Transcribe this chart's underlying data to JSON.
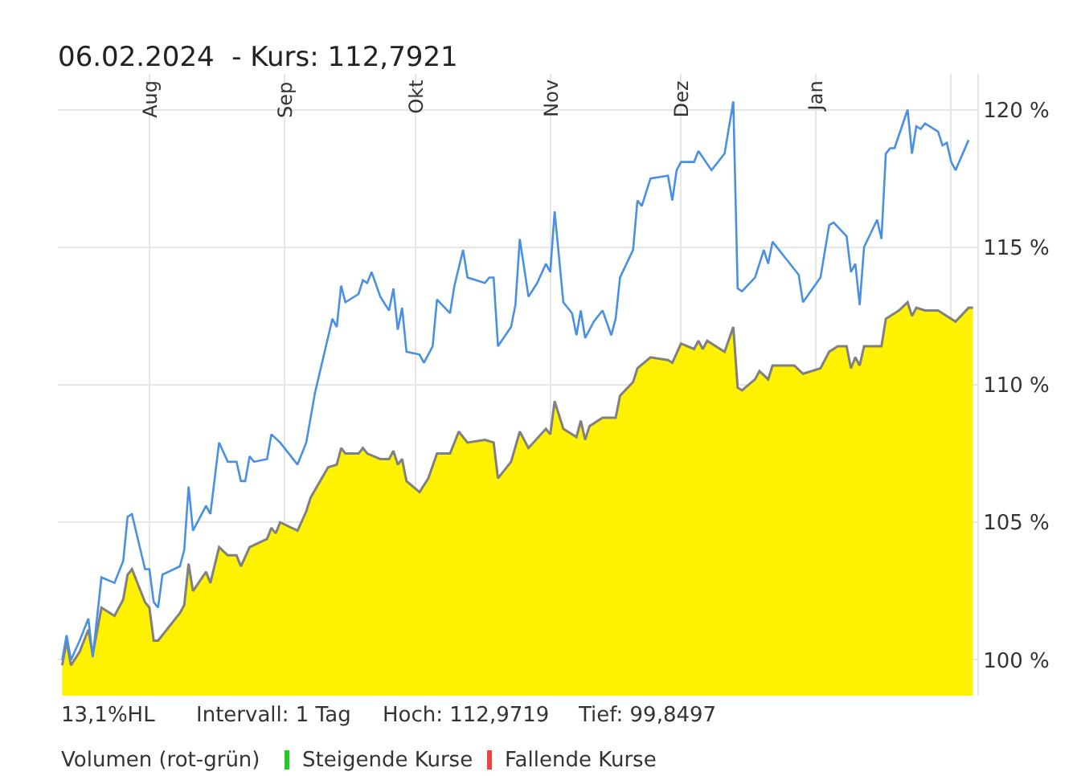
{
  "chart_data": {
    "type": "area",
    "title": "06.02.2024  - Kurs: 112,7921",
    "series": [
      {
        "type": "area",
        "color": "#fff200",
        "x": [
          "2023-07-12",
          "2023-07-13",
          "2023-07-14",
          "2023-07-16",
          "2023-07-18",
          "2023-07-19",
          "2023-07-21",
          "2023-07-24",
          "2023-07-26",
          "2023-07-27",
          "2023-07-28",
          "2023-07-31",
          "2023-08-01",
          "2023-08-02",
          "2023-08-03",
          "2023-08-08",
          "2023-08-09",
          "2023-08-10",
          "2023-08-11",
          "2023-08-14",
          "2023-08-15",
          "2023-08-17",
          "2023-08-19",
          "2023-08-21",
          "2023-08-22",
          "2023-08-24",
          "2023-08-28",
          "2023-08-29",
          "2023-08-30",
          "2023-08-31",
          "2023-09-04",
          "2023-09-06",
          "2023-09-07",
          "2023-09-11",
          "2023-09-13",
          "2023-09-14",
          "2023-09-15",
          "2023-09-18",
          "2023-09-19",
          "2023-09-20",
          "2023-09-23",
          "2023-09-25",
          "2023-09-26",
          "2023-09-27",
          "2023-09-28",
          "2023-09-29",
          "2023-10-02",
          "2023-10-04",
          "2023-10-06",
          "2023-10-09",
          "2023-10-11",
          "2023-10-13",
          "2023-10-17",
          "2023-10-19",
          "2023-10-20",
          "2023-10-23",
          "2023-10-25",
          "2023-10-27",
          "2023-10-31",
          "2023-11-01",
          "2023-11-02",
          "2023-11-04",
          "2023-11-07",
          "2023-11-08",
          "2023-11-09",
          "2023-11-10",
          "2023-11-13",
          "2023-11-16",
          "2023-11-17",
          "2023-11-20",
          "2023-11-21",
          "2023-11-24",
          "2023-11-28",
          "2023-11-29",
          "2023-12-01",
          "2023-12-04",
          "2023-12-05",
          "2023-12-06",
          "2023-12-07",
          "2023-12-11",
          "2023-12-13",
          "2023-12-14",
          "2023-12-15",
          "2023-12-18",
          "2023-12-19",
          "2023-12-21",
          "2023-12-22",
          "2023-12-27",
          "2023-12-29",
          "2024-01-02",
          "2024-01-04",
          "2024-01-06",
          "2024-01-08",
          "2024-01-09",
          "2024-01-10",
          "2024-01-11",
          "2024-01-12",
          "2024-01-16",
          "2024-01-17",
          "2024-01-20",
          "2024-01-22",
          "2024-01-23",
          "2024-01-24",
          "2024-01-26",
          "2024-01-29",
          "2024-01-30",
          "2024-02-02",
          "2024-02-05",
          "2024-02-06"
        ],
        "values": [
          99.8,
          100.7,
          99.8,
          100.3,
          101.1,
          100.2,
          101.9,
          101.6,
          102.2,
          103.1,
          103.3,
          102.1,
          101.9,
          100.7,
          100.7,
          101.7,
          102.0,
          103.5,
          102.5,
          103.2,
          102.8,
          104.1,
          103.8,
          103.8,
          103.4,
          104.1,
          104.4,
          104.8,
          104.6,
          105.0,
          104.7,
          105.4,
          105.9,
          107.0,
          107.1,
          107.7,
          107.5,
          107.5,
          107.7,
          107.5,
          107.3,
          107.3,
          107.6,
          107.1,
          107.3,
          106.5,
          106.1,
          106.6,
          107.5,
          107.5,
          108.3,
          107.9,
          108.0,
          107.9,
          106.6,
          107.2,
          108.3,
          107.7,
          108.4,
          108.2,
          109.4,
          108.4,
          108.1,
          108.7,
          108.0,
          108.5,
          108.8,
          108.8,
          109.6,
          110.1,
          110.6,
          111.0,
          110.9,
          110.8,
          111.5,
          111.3,
          111.6,
          111.3,
          111.6,
          111.2,
          112.1,
          109.9,
          109.8,
          110.2,
          110.5,
          110.2,
          110.7,
          110.7,
          110.4,
          110.6,
          111.2,
          111.4,
          111.4,
          110.6,
          111.0,
          110.7,
          111.4,
          111.4,
          112.4,
          112.7,
          113.0,
          112.5,
          112.8,
          112.7,
          112.7,
          112.6,
          112.3,
          112.8,
          112.8
        ]
      },
      {
        "type": "line",
        "color": "#4a90e2",
        "x": [
          "2023-07-12",
          "2023-07-13",
          "2023-07-14",
          "2023-07-16",
          "2023-07-18",
          "2023-07-19",
          "2023-07-21",
          "2023-07-24",
          "2023-07-26",
          "2023-07-27",
          "2023-07-28",
          "2023-07-31",
          "2023-08-01",
          "2023-08-02",
          "2023-08-03",
          "2023-08-04",
          "2023-08-08",
          "2023-08-09",
          "2023-08-10",
          "2023-08-11",
          "2023-08-14",
          "2023-08-15",
          "2023-08-17",
          "2023-08-19",
          "2023-08-21",
          "2023-08-22",
          "2023-08-23",
          "2023-08-24",
          "2023-08-25",
          "2023-08-28",
          "2023-08-29",
          "2023-08-31",
          "2023-09-04",
          "2023-09-06",
          "2023-09-08",
          "2023-09-12",
          "2023-09-13",
          "2023-09-14",
          "2023-09-15",
          "2023-09-18",
          "2023-09-19",
          "2023-09-20",
          "2023-09-21",
          "2023-09-23",
          "2023-09-25",
          "2023-09-26",
          "2023-09-27",
          "2023-09-28",
          "2023-09-29",
          "2023-10-02",
          "2023-10-03",
          "2023-10-05",
          "2023-10-06",
          "2023-10-09",
          "2023-10-10",
          "2023-10-12",
          "2023-10-13",
          "2023-10-17",
          "2023-10-18",
          "2023-10-19",
          "2023-10-20",
          "2023-10-23",
          "2023-10-24",
          "2023-10-25",
          "2023-10-27",
          "2023-10-29",
          "2023-10-31",
          "2023-11-01",
          "2023-11-02",
          "2023-11-04",
          "2023-11-06",
          "2023-11-07",
          "2023-11-08",
          "2023-11-09",
          "2023-11-11",
          "2023-11-13",
          "2023-11-15",
          "2023-11-16",
          "2023-11-17",
          "2023-11-20",
          "2023-11-21",
          "2023-11-22",
          "2023-11-24",
          "2023-11-28",
          "2023-11-29",
          "2023-11-30",
          "2023-12-01",
          "2023-12-04",
          "2023-12-05",
          "2023-12-08",
          "2023-12-11",
          "2023-12-13",
          "2023-12-14",
          "2023-12-15",
          "2023-12-18",
          "2023-12-20",
          "2023-12-21",
          "2023-12-22",
          "2023-12-25",
          "2023-12-28",
          "2023-12-29",
          "2024-01-02",
          "2024-01-04",
          "2024-01-05",
          "2024-01-08",
          "2024-01-09",
          "2024-01-10",
          "2024-01-11",
          "2024-01-12",
          "2024-01-15",
          "2024-01-16",
          "2024-01-17",
          "2024-01-18",
          "2024-01-19",
          "2024-01-22",
          "2024-01-23",
          "2024-01-24",
          "2024-01-25",
          "2024-01-26",
          "2024-01-29",
          "2024-01-30",
          "2024-01-31",
          "2024-02-01",
          "2024-02-02",
          "2024-02-05"
        ],
        "values": [
          100.0,
          100.9,
          100.0,
          100.7,
          101.5,
          100.1,
          103.0,
          102.8,
          103.6,
          105.2,
          105.3,
          103.3,
          103.3,
          102.1,
          101.9,
          103.1,
          103.4,
          104.0,
          106.3,
          104.7,
          105.6,
          105.3,
          107.9,
          107.2,
          107.2,
          106.5,
          106.5,
          107.4,
          107.2,
          107.3,
          108.2,
          107.9,
          107.1,
          107.9,
          109.7,
          112.4,
          112.1,
          113.6,
          113.0,
          113.3,
          113.8,
          113.7,
          114.1,
          113.2,
          112.7,
          113.5,
          112.0,
          112.8,
          111.2,
          111.1,
          110.8,
          111.4,
          113.1,
          112.6,
          113.6,
          114.9,
          113.9,
          113.7,
          113.9,
          113.9,
          111.4,
          112.1,
          112.9,
          115.3,
          113.2,
          113.7,
          114.4,
          114.1,
          116.3,
          113.0,
          112.6,
          111.8,
          112.7,
          111.7,
          112.3,
          112.7,
          111.8,
          112.4,
          113.9,
          114.9,
          116.7,
          116.5,
          117.5,
          117.6,
          116.7,
          117.8,
          118.1,
          118.1,
          118.5,
          117.8,
          118.4,
          120.3,
          113.5,
          113.4,
          113.9,
          114.9,
          114.4,
          115.2,
          114.6,
          114.0,
          113.0,
          113.9,
          115.8,
          115.9,
          115.4,
          114.1,
          114.4,
          112.9,
          115.0,
          116.0,
          115.3,
          118.4,
          118.6,
          118.6,
          120.0,
          118.4,
          119.4,
          119.3,
          119.5,
          119.2,
          118.7,
          118.8,
          118.1,
          117.8,
          118.9
        ]
      }
    ],
    "xlim": [
      "2023-07-11",
      "2024-02-07"
    ],
    "xticks": [
      {
        "value": "2023-08-01",
        "label": "Aug"
      },
      {
        "value": "2023-09-01",
        "label": "Sep"
      },
      {
        "value": "2023-10-01",
        "label": "Okt"
      },
      {
        "value": "2023-11-01",
        "label": "Nov"
      },
      {
        "value": "2023-12-01",
        "label": "Dez"
      },
      {
        "value": "2024-01-01",
        "label": "Jan"
      },
      {
        "value": "2024-02-01",
        "label": null
      }
    ],
    "ylim": [
      98.7,
      121.3
    ],
    "yticks": [
      {
        "value": 100,
        "label": "100 %"
      },
      {
        "value": 105,
        "label": "105 %"
      },
      {
        "value": 110,
        "label": "110 %"
      },
      {
        "value": 115,
        "label": "115 %"
      },
      {
        "value": 120,
        "label": "120 %"
      }
    ],
    "grid": true,
    "annotations": [
      "13,1%HL",
      "Intervall: 1 Tag",
      "Hoch: 112,9719",
      "Tief: 99,8497",
      "Volumen (rot-grün)",
      "Steigende Kurse",
      "Fallende Kurse"
    ]
  }
}
